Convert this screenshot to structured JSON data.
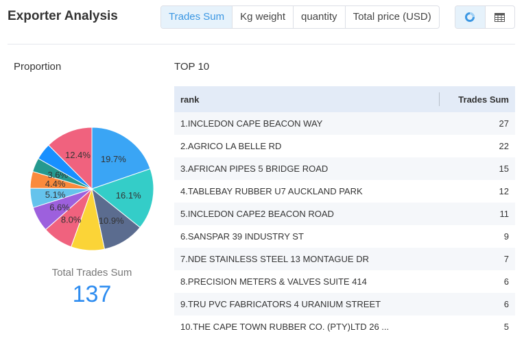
{
  "header": {
    "title": "Exporter Analysis",
    "tabs": [
      "Trades Sum",
      "Kg weight",
      "quantity",
      "Total price (USD)"
    ],
    "active_tab": "Trades Sum"
  },
  "view_toggle": {
    "active": "pie-chart-icon",
    "icons": [
      "pie-chart-icon",
      "table-icon"
    ]
  },
  "colors": {
    "accent": "#3b97e3",
    "total_value": "#2d8cf0",
    "table_header_bg": "#e3ebf7"
  },
  "proportion": {
    "title": "Proportion",
    "total_label": "Total Trades Sum",
    "total_value": "137"
  },
  "top10": {
    "title": "TOP 10",
    "columns": [
      "rank",
      "Trades Sum"
    ],
    "rows": [
      {
        "name": "1.INCLEDON CAPE BEACON WAY",
        "value": "27"
      },
      {
        "name": "2.AGRICO LA BELLE RD",
        "value": "22"
      },
      {
        "name": "3.AFRICAN PIPES 5 BRIDGE ROAD",
        "value": "15"
      },
      {
        "name": "4.TABLEBAY RUBBER U7 AUCKLAND PARK",
        "value": "12"
      },
      {
        "name": "5.INCLEDON CAPE2 BEACON ROAD",
        "value": "11"
      },
      {
        "name": "6.SANSPAR 39 INDUSTRY ST",
        "value": "9"
      },
      {
        "name": "7.NDE STAINLESS STEEL 13 MONTAGUE DR",
        "value": "7"
      },
      {
        "name": "8.PRECISION METERS & VALVES SUITE 414",
        "value": "6"
      },
      {
        "name": "9.TRU PVC FABRICATORS 4 URANIUM STREET",
        "value": "6"
      },
      {
        "name": "10.THE CAPE TOWN RUBBER CO. (PTY)LTD 26 ...",
        "value": "5"
      }
    ]
  },
  "chart_data": {
    "type": "pie",
    "slices": [
      {
        "value": 27,
        "label": "19.7%",
        "color": "#3aa5f5"
      },
      {
        "value": 22,
        "label": "16.1%",
        "color": "#34cdc8"
      },
      {
        "value": 15,
        "label": "10.9%",
        "color": "#5b6c8f"
      },
      {
        "value": 12,
        "label": "",
        "color": "#fbd437"
      },
      {
        "value": 11,
        "label": "8.0%",
        "color": "#f0627e"
      },
      {
        "value": 9,
        "label": "6.6%",
        "color": "#9d60dd"
      },
      {
        "value": 7,
        "label": "5.1%",
        "color": "#65c3ec"
      },
      {
        "value": 6,
        "label": "4.4%",
        "color": "#fa8a3c"
      },
      {
        "value": 5,
        "label": "3.6%",
        "color": "#25998f"
      },
      {
        "value": 6,
        "label": "",
        "color": "#1890ff"
      },
      {
        "value": 17,
        "label": "12.4%",
        "color": "#f0627e"
      }
    ]
  }
}
